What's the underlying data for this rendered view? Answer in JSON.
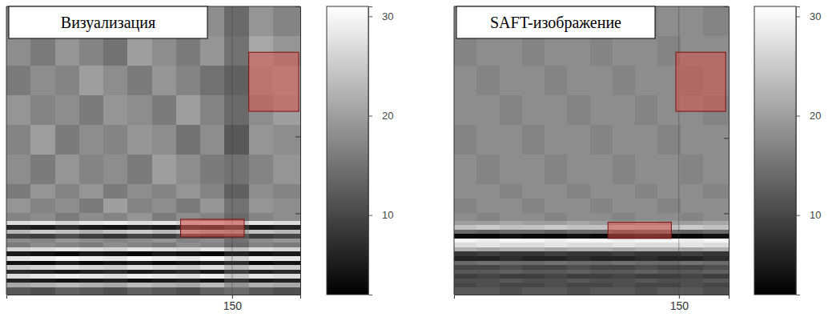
{
  "chart_data": [
    {
      "type": "heatmap",
      "title": "Визуализация",
      "xlim": [
        1,
        195
      ],
      "ylim": [
        0,
        195
      ],
      "xticks": [
        150
      ],
      "yticks": [
        88,
        140
      ],
      "tick_labels": "x",
      "grid": true,
      "x_edges": [
        1,
        17,
        33,
        49,
        65,
        81,
        97,
        113,
        129,
        145,
        161,
        177,
        195
      ],
      "y_edges": [
        0,
        20,
        40,
        60,
        80,
        100,
        120,
        130,
        140,
        145,
        148,
        151,
        154,
        157,
        160,
        163,
        166,
        169,
        172,
        175,
        178,
        181,
        184,
        187,
        190,
        195
      ],
      "cells": [
        [
          17,
          19,
          16,
          18,
          20,
          17,
          15,
          19,
          18,
          14,
          19,
          17
        ],
        [
          18,
          16,
          19,
          17,
          15,
          20,
          18,
          16,
          19,
          15,
          21,
          19
        ],
        [
          16,
          18,
          17,
          20,
          18,
          16,
          19,
          17,
          15,
          13,
          20,
          21
        ],
        [
          19,
          17,
          18,
          16,
          19,
          18,
          16,
          20,
          17,
          14,
          18,
          20
        ],
        [
          17,
          20,
          16,
          18,
          17,
          19,
          18,
          15,
          18,
          12,
          19,
          18
        ],
        [
          18,
          16,
          19,
          17,
          18,
          16,
          20,
          18,
          16,
          15,
          17,
          19
        ],
        [
          16,
          19,
          17,
          19,
          16,
          18,
          17,
          19,
          17,
          13,
          18,
          17
        ],
        [
          19,
          17,
          18,
          16,
          20,
          17,
          18,
          16,
          19,
          15,
          19,
          18
        ],
        [
          17,
          18,
          16,
          18,
          17,
          19,
          16,
          18,
          17,
          14,
          17,
          18
        ],
        [
          27,
          28,
          26,
          28,
          29,
          27,
          28,
          26,
          27,
          25,
          28,
          27
        ],
        [
          6,
          5,
          7,
          5,
          4,
          6,
          5,
          7,
          6,
          8,
          5,
          6
        ],
        [
          23,
          25,
          24,
          22,
          24,
          25,
          23,
          24,
          22,
          21,
          24,
          23
        ],
        [
          10,
          9,
          11,
          9,
          8,
          10,
          9,
          11,
          10,
          12,
          9,
          10
        ],
        [
          18,
          17,
          19,
          18,
          17,
          18,
          19,
          17,
          18,
          15,
          18,
          19
        ],
        [
          16,
          18,
          17,
          16,
          18,
          17,
          16,
          18,
          17,
          14,
          17,
          16
        ],
        [
          26,
          27,
          28,
          27,
          26,
          28,
          27,
          26,
          28,
          24,
          27,
          26
        ],
        [
          5,
          4,
          3,
          5,
          4,
          3,
          5,
          4,
          3,
          6,
          4,
          5
        ],
        [
          28,
          29,
          30,
          29,
          28,
          30,
          29,
          28,
          30,
          26,
          29,
          28
        ],
        [
          4,
          3,
          5,
          3,
          4,
          5,
          3,
          4,
          5,
          7,
          3,
          4
        ],
        [
          25,
          26,
          27,
          26,
          25,
          27,
          26,
          25,
          27,
          23,
          26,
          25
        ],
        [
          7,
          6,
          5,
          6,
          7,
          5,
          6,
          7,
          5,
          9,
          6,
          7
        ],
        [
          27,
          28,
          29,
          28,
          27,
          29,
          28,
          27,
          29,
          25,
          28,
          27
        ],
        [
          6,
          5,
          4,
          5,
          6,
          4,
          5,
          6,
          4,
          8,
          5,
          6
        ],
        [
          21,
          22,
          23,
          22,
          21,
          23,
          22,
          21,
          23,
          19,
          22,
          21
        ],
        [
          12,
          11,
          13,
          12,
          11,
          13,
          12,
          11,
          13,
          14,
          12,
          11
        ]
      ],
      "colorbar": {
        "range": [
          2,
          31
        ],
        "ticks": [
          10,
          20,
          30
        ]
      },
      "regions": [
        {
          "x": [
            161,
            194
          ],
          "y": [
            31,
            71
          ]
        },
        {
          "x": [
            116,
            158
          ],
          "y": [
            144,
            156
          ]
        }
      ]
    },
    {
      "type": "heatmap",
      "title": "SAFT-изображение",
      "xlim": [
        1,
        183
      ],
      "ylim": [
        0,
        195
      ],
      "xticks": [
        150
      ],
      "yticks": [
        89,
        140
      ],
      "tick_labels": "x",
      "grid": true,
      "x_edges": [
        1,
        16,
        31,
        46,
        61,
        76,
        91,
        106,
        121,
        136,
        151,
        166,
        183
      ],
      "y_edges": [
        0,
        20,
        40,
        60,
        80,
        100,
        120,
        130,
        140,
        145,
        148,
        151,
        154,
        157,
        160,
        163,
        166,
        169,
        172,
        175,
        178,
        181,
        184,
        187,
        190,
        195
      ],
      "cells": [
        [
          18,
          18,
          17,
          18,
          18,
          17,
          18,
          18,
          17,
          18,
          18,
          17
        ],
        [
          17,
          18,
          18,
          17,
          18,
          18,
          17,
          18,
          18,
          17,
          18,
          18
        ],
        [
          18,
          17,
          18,
          18,
          17,
          18,
          18,
          17,
          18,
          18,
          17,
          18
        ],
        [
          18,
          18,
          17,
          18,
          18,
          17,
          18,
          18,
          17,
          18,
          18,
          17
        ],
        [
          17,
          18,
          18,
          17,
          18,
          18,
          17,
          18,
          18,
          17,
          18,
          18
        ],
        [
          18,
          17,
          18,
          18,
          17,
          18,
          18,
          17,
          18,
          18,
          17,
          18
        ],
        [
          18,
          18,
          17,
          18,
          18,
          17,
          18,
          18,
          17,
          18,
          18,
          17
        ],
        [
          17,
          18,
          18,
          17,
          18,
          18,
          17,
          18,
          18,
          17,
          18,
          18
        ],
        [
          18,
          17,
          18,
          18,
          17,
          18,
          18,
          17,
          18,
          18,
          17,
          18
        ],
        [
          20,
          20,
          21,
          20,
          20,
          21,
          20,
          20,
          21,
          20,
          20,
          21
        ],
        [
          24,
          25,
          24,
          24,
          25,
          24,
          24,
          25,
          24,
          24,
          25,
          24
        ],
        [
          14,
          13,
          14,
          14,
          13,
          14,
          14,
          13,
          14,
          14,
          13,
          14
        ],
        [
          3,
          3,
          4,
          3,
          3,
          4,
          3,
          3,
          4,
          3,
          3,
          4
        ],
        [
          30,
          29,
          30,
          30,
          29,
          30,
          30,
          29,
          30,
          30,
          29,
          30
        ],
        [
          27,
          28,
          27,
          27,
          28,
          27,
          27,
          28,
          27,
          27,
          28,
          27
        ],
        [
          22,
          21,
          22,
          22,
          21,
          22,
          22,
          21,
          22,
          22,
          21,
          22
        ],
        [
          8,
          9,
          8,
          8,
          9,
          8,
          8,
          9,
          8,
          8,
          9,
          8
        ],
        [
          6,
          6,
          7,
          6,
          6,
          7,
          6,
          6,
          7,
          6,
          6,
          7
        ],
        [
          14,
          15,
          14,
          14,
          15,
          14,
          14,
          15,
          14,
          14,
          15,
          14
        ],
        [
          10,
          10,
          11,
          10,
          10,
          11,
          10,
          10,
          11,
          10,
          10,
          11
        ],
        [
          12,
          12,
          13,
          12,
          12,
          13,
          12,
          12,
          13,
          12,
          12,
          13
        ],
        [
          9,
          10,
          9,
          9,
          10,
          9,
          9,
          10,
          9,
          9,
          10,
          9
        ],
        [
          11,
          11,
          12,
          11,
          11,
          12,
          11,
          11,
          12,
          11,
          11,
          12
        ],
        [
          10,
          11,
          10,
          10,
          11,
          10,
          10,
          11,
          10,
          10,
          11,
          10
        ],
        [
          12,
          12,
          11,
          12,
          12,
          11,
          12,
          12,
          11,
          12,
          12,
          11
        ]
      ],
      "colorbar": {
        "range": [
          2,
          31
        ],
        "ticks": [
          10,
          20,
          30
        ]
      },
      "regions": [
        {
          "x": [
            148,
            181
          ],
          "y": [
            31,
            71
          ]
        },
        {
          "x": [
            103,
            145
          ],
          "y": [
            146,
            157
          ]
        }
      ]
    }
  ]
}
